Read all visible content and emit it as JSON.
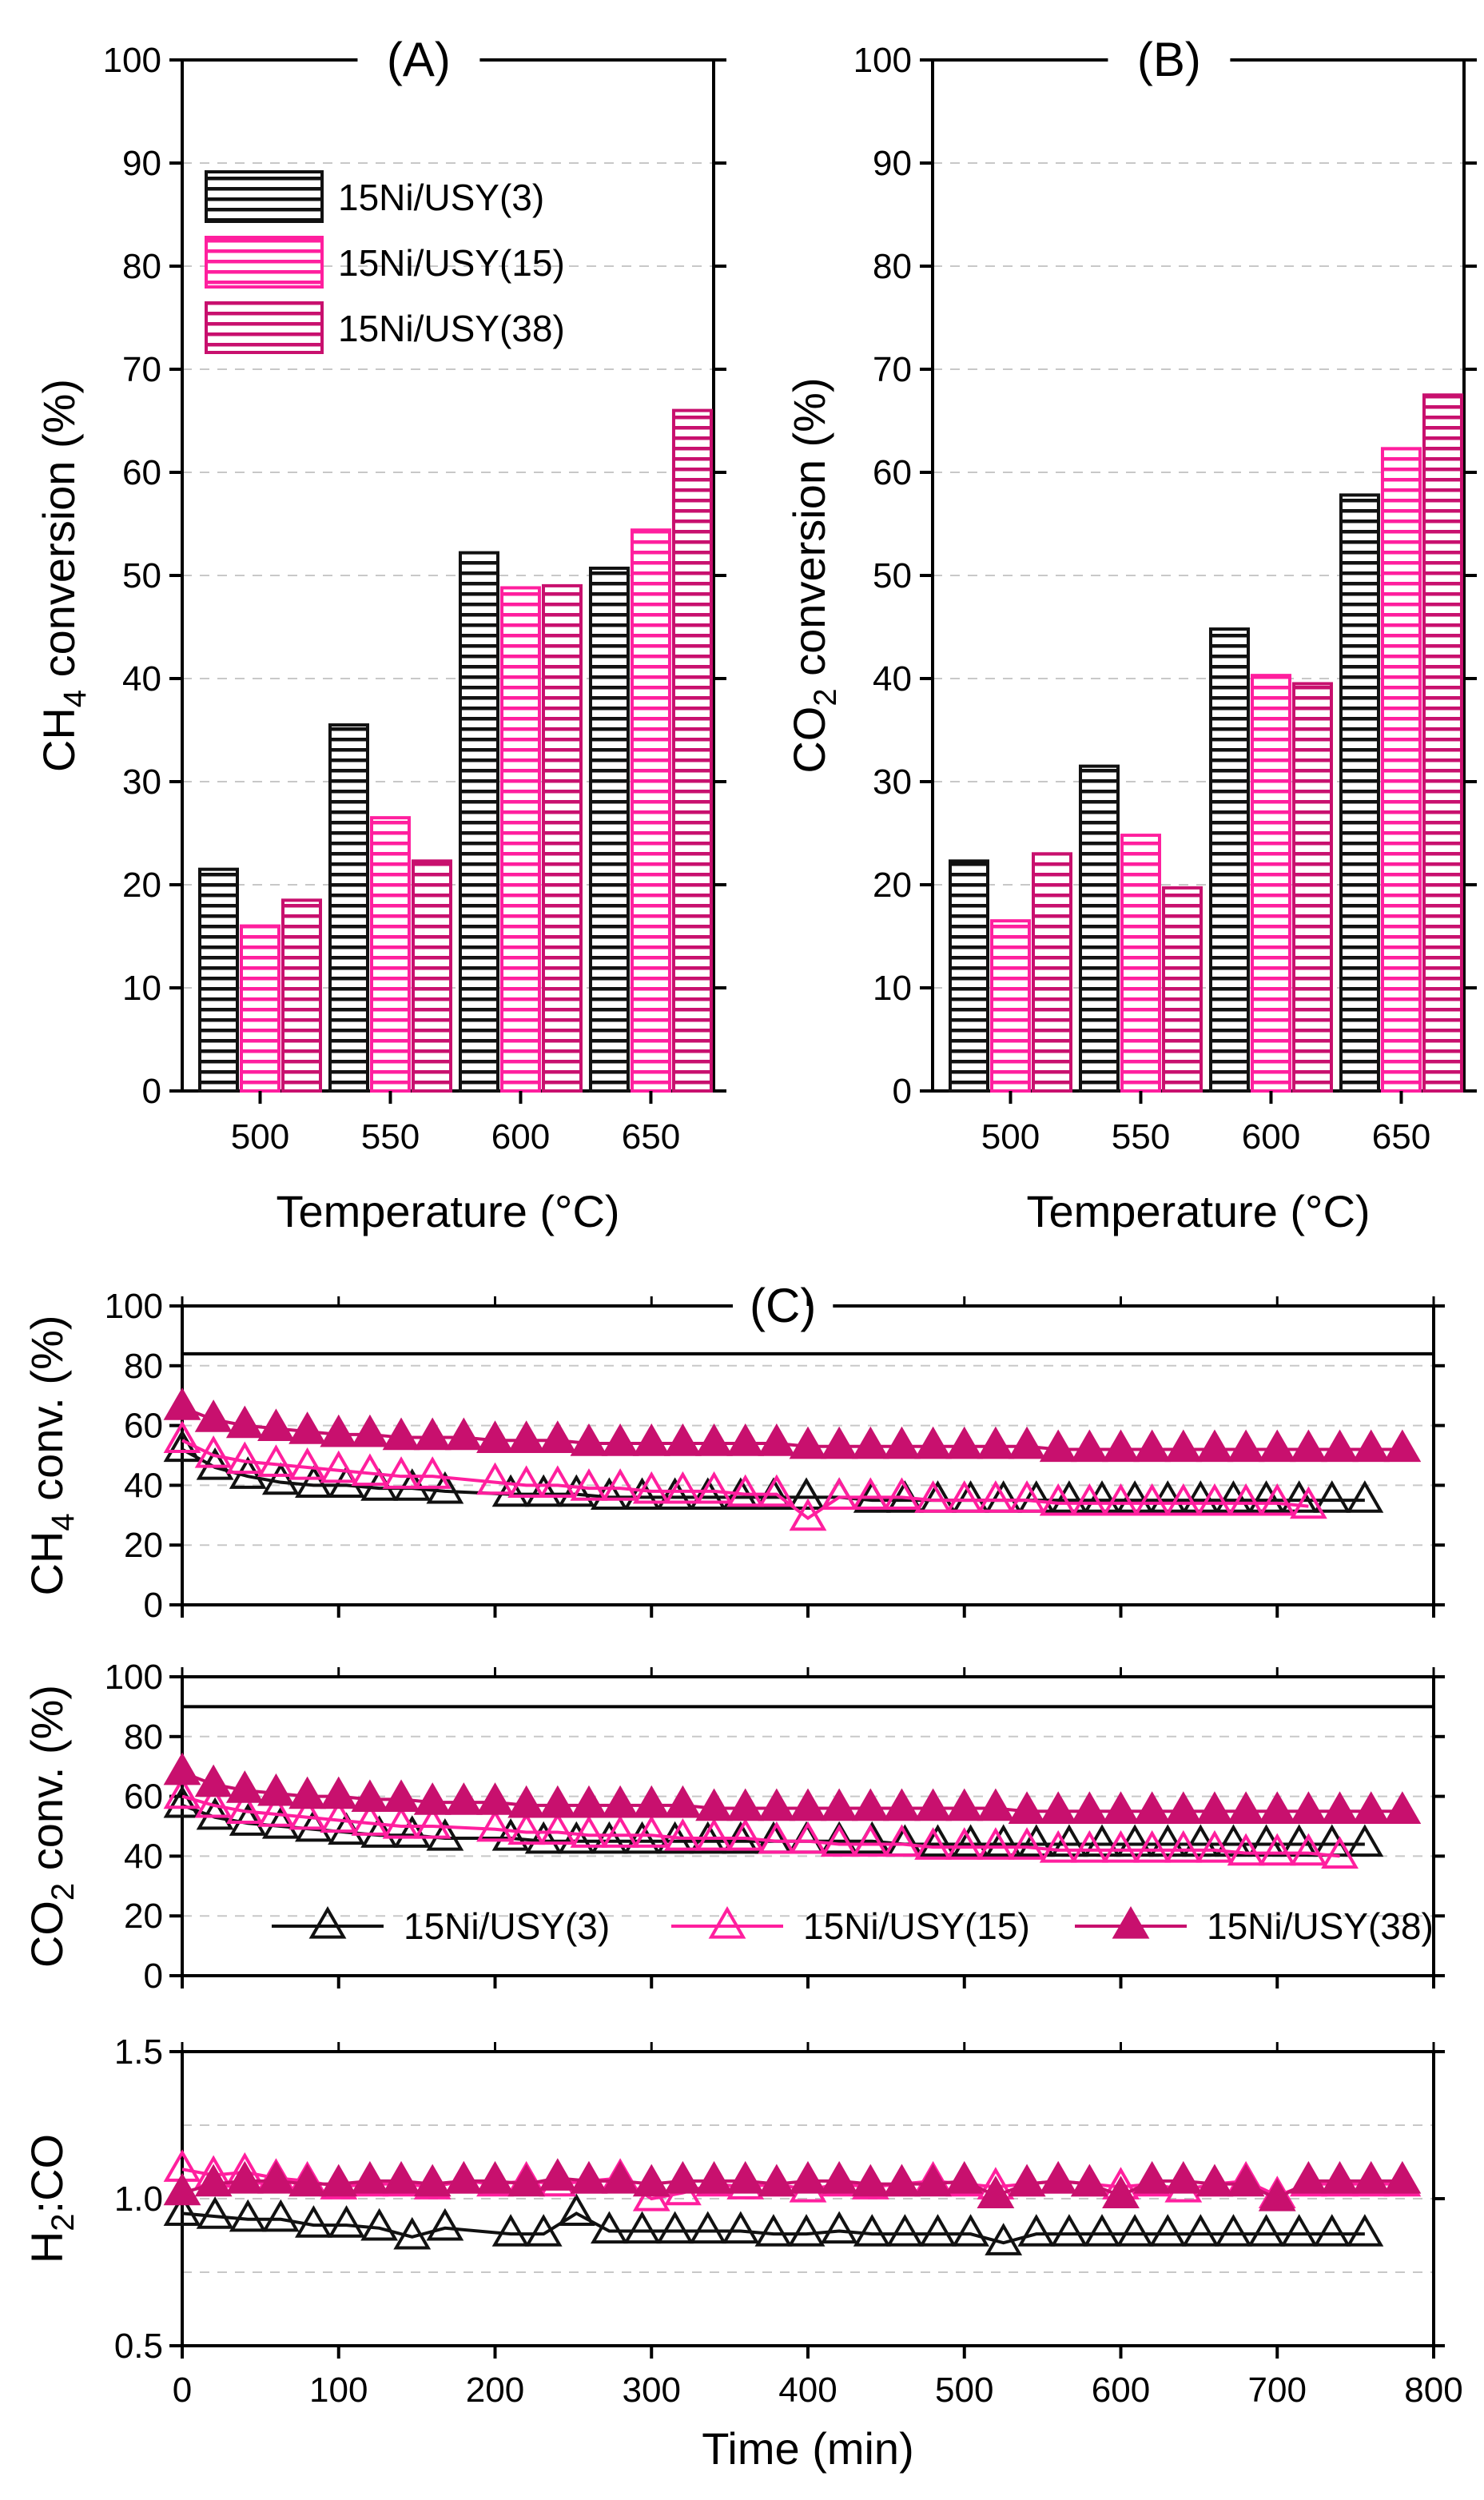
{
  "colors": {
    "black": "#111111",
    "pink": "#ff1f9e",
    "magenta": "#c8106e"
  },
  "chart_data": [
    {
      "id": "A",
      "type": "bar",
      "title": "(A)",
      "xlabel": "Temperature (°C)",
      "ylabel": {
        "pre": "CH",
        "sub": "4",
        "post": " conversion (%)"
      },
      "ylim": [
        0,
        100
      ],
      "yticks": [
        0,
        10,
        20,
        30,
        40,
        50,
        60,
        70,
        80,
        90,
        100
      ],
      "categories": [
        "500",
        "550",
        "600",
        "650"
      ],
      "series": [
        {
          "name": "15Ni/USY(3)",
          "color": "#111111",
          "values": [
            21.5,
            35.5,
            52.2,
            50.7
          ]
        },
        {
          "name": "15Ni/USY(15)",
          "color": "#ff1f9e",
          "values": [
            16.0,
            26.5,
            48.8,
            54.4
          ]
        },
        {
          "name": "15Ni/USY(38)",
          "color": "#c8106e",
          "values": [
            18.5,
            22.3,
            49.0,
            66.0
          ]
        }
      ],
      "legend": "top-left"
    },
    {
      "id": "B",
      "type": "bar",
      "title": "(B)",
      "xlabel": "Temperature (°C)",
      "ylabel": {
        "pre": "CO",
        "sub": "2",
        "post": " conversion (%)"
      },
      "ylim": [
        0,
        100
      ],
      "yticks": [
        0,
        10,
        20,
        30,
        40,
        50,
        60,
        70,
        80,
        90,
        100
      ],
      "categories": [
        "500",
        "550",
        "600",
        "650"
      ],
      "series": [
        {
          "name": "15Ni/USY(3)",
          "color": "#111111",
          "values": [
            22.3,
            31.5,
            44.8,
            57.8
          ]
        },
        {
          "name": "15Ni/USY(15)",
          "color": "#ff1f9e",
          "values": [
            16.5,
            24.8,
            40.3,
            62.3
          ]
        },
        {
          "name": "15Ni/USY(38)",
          "color": "#c8106e",
          "values": [
            23.0,
            19.7,
            39.5,
            67.5
          ]
        }
      ]
    },
    {
      "id": "C1",
      "type": "line",
      "title": "(C)",
      "ylabel": {
        "pre": "CH",
        "sub": "4",
        "post": " conv. (%)"
      },
      "ylim": [
        0,
        100
      ],
      "yticks": [
        0,
        20,
        40,
        60,
        80,
        100
      ],
      "equilibrium": 84,
      "series": [
        {
          "name": "15Ni/USY(3)",
          "x": [
            0,
            21,
            42,
            63,
            84,
            105,
            126,
            147,
            168,
            210,
            231,
            252,
            273,
            294,
            315,
            336,
            357,
            378,
            399,
            420,
            441,
            462,
            483,
            504,
            525,
            546,
            567,
            588,
            609,
            630,
            651,
            672,
            693,
            714,
            735,
            756
          ],
          "y": [
            52,
            46,
            43,
            41,
            40,
            40,
            39,
            39,
            38,
            37,
            37,
            37,
            36,
            36,
            36,
            36,
            36,
            36,
            36,
            36,
            35,
            35,
            35,
            35,
            35,
            35,
            35,
            35,
            35,
            35,
            35,
            35,
            35,
            35,
            35,
            35
          ]
        },
        {
          "name": "15Ni/USY(15)",
          "x": [
            0,
            20,
            40,
            60,
            80,
            100,
            120,
            140,
            160,
            200,
            220,
            240,
            260,
            280,
            300,
            320,
            340,
            360,
            380,
            400,
            420,
            440,
            460,
            480,
            500,
            520,
            540,
            560,
            580,
            600,
            620,
            640,
            660,
            680,
            700,
            720
          ],
          "y": [
            55,
            50,
            48,
            47,
            46,
            45,
            44,
            43,
            43,
            41,
            40,
            40,
            39,
            39,
            38,
            38,
            38,
            37,
            37,
            29,
            36,
            36,
            36,
            35,
            35,
            35,
            35,
            34,
            34,
            34,
            34,
            34,
            34,
            34,
            34,
            33
          ]
        },
        {
          "name": "15Ni/USY(38)",
          "x": [
            0,
            20,
            40,
            60,
            80,
            100,
            120,
            140,
            160,
            180,
            200,
            220,
            240,
            260,
            280,
            300,
            320,
            340,
            360,
            380,
            400,
            420,
            440,
            460,
            480,
            500,
            520,
            540,
            560,
            580,
            600,
            620,
            640,
            660,
            680,
            700,
            720,
            740,
            760,
            780
          ],
          "y": [
            66,
            62,
            60,
            59,
            58,
            57,
            57,
            56,
            56,
            56,
            55,
            55,
            55,
            54,
            54,
            54,
            54,
            54,
            54,
            54,
            53,
            53,
            53,
            53,
            53,
            53,
            53,
            53,
            52,
            52,
            52,
            52,
            52,
            52,
            52,
            52,
            52,
            52,
            52,
            52
          ]
        }
      ]
    },
    {
      "id": "C2",
      "type": "line",
      "ylabel": {
        "pre": "CO",
        "sub": "2",
        "post": " conv. (%)"
      },
      "ylim": [
        0,
        100
      ],
      "yticks": [
        0,
        20,
        40,
        60,
        80,
        100
      ],
      "equilibrium": 90,
      "legend": "bottom-center",
      "series": [
        {
          "name": "15Ni/USY(3)",
          "x": [
            0,
            21,
            42,
            63,
            84,
            105,
            126,
            147,
            168,
            210,
            231,
            252,
            273,
            294,
            315,
            336,
            357,
            378,
            399,
            420,
            441,
            462,
            483,
            504,
            525,
            546,
            567,
            588,
            609,
            630,
            651,
            672,
            693,
            714,
            735,
            756
          ],
          "y": [
            57,
            53,
            51,
            50,
            49,
            48,
            47,
            47,
            46,
            46,
            45,
            45,
            45,
            45,
            45,
            45,
            45,
            45,
            45,
            45,
            45,
            44,
            44,
            44,
            44,
            44,
            44,
            44,
            44,
            44,
            44,
            44,
            44,
            44,
            44,
            44
          ]
        },
        {
          "name": "15Ni/USY(15)",
          "x": [
            0,
            20,
            40,
            60,
            80,
            100,
            120,
            140,
            160,
            200,
            220,
            240,
            260,
            280,
            300,
            320,
            340,
            360,
            380,
            400,
            420,
            440,
            460,
            480,
            500,
            520,
            540,
            560,
            580,
            600,
            620,
            640,
            660,
            680,
            700,
            720,
            740
          ],
          "y": [
            60,
            57,
            55,
            54,
            53,
            52,
            51,
            50,
            50,
            49,
            48,
            48,
            47,
            47,
            47,
            46,
            46,
            46,
            45,
            45,
            44,
            44,
            44,
            43,
            43,
            43,
            43,
            42,
            42,
            42,
            42,
            42,
            42,
            41,
            41,
            41,
            40
          ]
        },
        {
          "name": "15Ni/USY(38)",
          "x": [
            0,
            20,
            40,
            60,
            80,
            100,
            120,
            140,
            160,
            180,
            200,
            220,
            240,
            260,
            280,
            300,
            320,
            340,
            360,
            380,
            400,
            420,
            440,
            460,
            480,
            500,
            520,
            540,
            560,
            580,
            600,
            620,
            640,
            660,
            680,
            700,
            720,
            740,
            760,
            780
          ],
          "y": [
            68,
            64,
            62,
            61,
            60,
            60,
            59,
            59,
            58,
            58,
            58,
            57,
            57,
            57,
            57,
            57,
            57,
            56,
            56,
            56,
            56,
            56,
            56,
            56,
            56,
            56,
            56,
            55,
            55,
            55,
            55,
            55,
            55,
            55,
            55,
            55,
            55,
            55,
            55,
            55
          ]
        }
      ]
    },
    {
      "id": "C3",
      "type": "line",
      "ylabel": {
        "pre": "H",
        "sub": "2",
        "post": ":CO"
      },
      "xlabel": "Time (min)",
      "ylim": [
        0.5,
        1.5
      ],
      "yticks": [
        "0.5",
        "1.0",
        "1.5"
      ],
      "xlim": [
        0,
        800
      ],
      "xticks": [
        0,
        100,
        200,
        300,
        400,
        500,
        600,
        700,
        800
      ],
      "series": [
        {
          "name": "15Ni/USY(3)",
          "x": [
            0,
            21,
            42,
            63,
            84,
            105,
            126,
            147,
            168,
            210,
            231,
            252,
            273,
            294,
            315,
            336,
            357,
            378,
            399,
            420,
            441,
            462,
            483,
            504,
            525,
            546,
            567,
            588,
            609,
            630,
            651,
            672,
            693,
            714,
            735,
            756
          ],
          "y": [
            0.95,
            0.94,
            0.93,
            0.93,
            0.91,
            0.91,
            0.9,
            0.87,
            0.9,
            0.88,
            0.88,
            0.95,
            0.89,
            0.89,
            0.89,
            0.89,
            0.89,
            0.88,
            0.88,
            0.89,
            0.88,
            0.88,
            0.88,
            0.88,
            0.85,
            0.88,
            0.88,
            0.88,
            0.88,
            0.88,
            0.88,
            0.88,
            0.88,
            0.88,
            0.88,
            0.88
          ]
        },
        {
          "name": "15Ni/USY(15)",
          "x": [
            0,
            20,
            40,
            60,
            80,
            100,
            120,
            140,
            160,
            180,
            200,
            220,
            240,
            260,
            280,
            300,
            320,
            340,
            360,
            380,
            400,
            420,
            440,
            460,
            480,
            500,
            520,
            540,
            560,
            580,
            600,
            620,
            640,
            660,
            680,
            700,
            720,
            740,
            760,
            780
          ],
          "y": [
            1.1,
            1.08,
            1.09,
            1.07,
            1.06,
            1.04,
            1.05,
            1.05,
            1.04,
            1.06,
            1.05,
            1.06,
            1.05,
            1.06,
            1.07,
            1.0,
            1.02,
            1.05,
            1.04,
            1.05,
            1.03,
            1.05,
            1.04,
            1.05,
            1.06,
            1.05,
            1.04,
            1.05,
            1.06,
            1.05,
            1.04,
            1.05,
            1.03,
            1.05,
            1.06,
            1.01,
            1.05,
            1.05,
            1.05,
            1.05
          ]
        },
        {
          "name": "15Ni/USY(38)",
          "x": [
            0,
            20,
            40,
            60,
            80,
            100,
            120,
            140,
            160,
            180,
            200,
            220,
            240,
            260,
            280,
            300,
            320,
            340,
            360,
            380,
            400,
            420,
            440,
            460,
            480,
            500,
            520,
            540,
            560,
            580,
            600,
            620,
            640,
            660,
            680,
            700,
            720,
            740,
            760,
            780
          ],
          "y": [
            1.02,
            1.05,
            1.06,
            1.06,
            1.05,
            1.05,
            1.06,
            1.06,
            1.05,
            1.06,
            1.06,
            1.05,
            1.07,
            1.06,
            1.06,
            1.05,
            1.06,
            1.06,
            1.06,
            1.05,
            1.06,
            1.06,
            1.05,
            1.05,
            1.05,
            1.06,
            1.01,
            1.05,
            1.06,
            1.05,
            1.01,
            1.06,
            1.06,
            1.05,
            1.05,
            1.0,
            1.06,
            1.06,
            1.06,
            1.06
          ]
        }
      ]
    }
  ]
}
